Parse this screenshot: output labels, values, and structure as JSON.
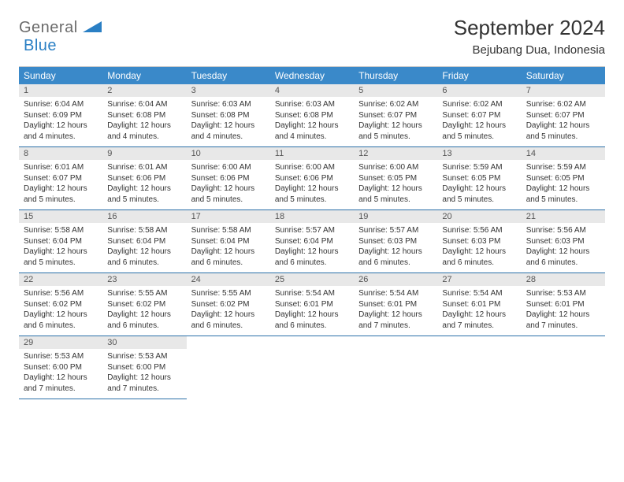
{
  "logo": {
    "part1": "General",
    "part2": "Blue"
  },
  "title": "September 2024",
  "location": "Bejubang Dua, Indonesia",
  "colors": {
    "header_bg": "#3a89c9",
    "header_text": "#ffffff",
    "daynum_bg": "#e8e8e8",
    "border": "#2a6fa8",
    "logo_gray": "#6b6b6b",
    "logo_blue": "#2a7fc4"
  },
  "dayNames": [
    "Sunday",
    "Monday",
    "Tuesday",
    "Wednesday",
    "Thursday",
    "Friday",
    "Saturday"
  ],
  "weeks": [
    [
      {
        "n": "1",
        "sr": "6:04 AM",
        "ss": "6:09 PM",
        "dl": "12 hours and 4 minutes."
      },
      {
        "n": "2",
        "sr": "6:04 AM",
        "ss": "6:08 PM",
        "dl": "12 hours and 4 minutes."
      },
      {
        "n": "3",
        "sr": "6:03 AM",
        "ss": "6:08 PM",
        "dl": "12 hours and 4 minutes."
      },
      {
        "n": "4",
        "sr": "6:03 AM",
        "ss": "6:08 PM",
        "dl": "12 hours and 4 minutes."
      },
      {
        "n": "5",
        "sr": "6:02 AM",
        "ss": "6:07 PM",
        "dl": "12 hours and 5 minutes."
      },
      {
        "n": "6",
        "sr": "6:02 AM",
        "ss": "6:07 PM",
        "dl": "12 hours and 5 minutes."
      },
      {
        "n": "7",
        "sr": "6:02 AM",
        "ss": "6:07 PM",
        "dl": "12 hours and 5 minutes."
      }
    ],
    [
      {
        "n": "8",
        "sr": "6:01 AM",
        "ss": "6:07 PM",
        "dl": "12 hours and 5 minutes."
      },
      {
        "n": "9",
        "sr": "6:01 AM",
        "ss": "6:06 PM",
        "dl": "12 hours and 5 minutes."
      },
      {
        "n": "10",
        "sr": "6:00 AM",
        "ss": "6:06 PM",
        "dl": "12 hours and 5 minutes."
      },
      {
        "n": "11",
        "sr": "6:00 AM",
        "ss": "6:06 PM",
        "dl": "12 hours and 5 minutes."
      },
      {
        "n": "12",
        "sr": "6:00 AM",
        "ss": "6:05 PM",
        "dl": "12 hours and 5 minutes."
      },
      {
        "n": "13",
        "sr": "5:59 AM",
        "ss": "6:05 PM",
        "dl": "12 hours and 5 minutes."
      },
      {
        "n": "14",
        "sr": "5:59 AM",
        "ss": "6:05 PM",
        "dl": "12 hours and 5 minutes."
      }
    ],
    [
      {
        "n": "15",
        "sr": "5:58 AM",
        "ss": "6:04 PM",
        "dl": "12 hours and 5 minutes."
      },
      {
        "n": "16",
        "sr": "5:58 AM",
        "ss": "6:04 PM",
        "dl": "12 hours and 6 minutes."
      },
      {
        "n": "17",
        "sr": "5:58 AM",
        "ss": "6:04 PM",
        "dl": "12 hours and 6 minutes."
      },
      {
        "n": "18",
        "sr": "5:57 AM",
        "ss": "6:04 PM",
        "dl": "12 hours and 6 minutes."
      },
      {
        "n": "19",
        "sr": "5:57 AM",
        "ss": "6:03 PM",
        "dl": "12 hours and 6 minutes."
      },
      {
        "n": "20",
        "sr": "5:56 AM",
        "ss": "6:03 PM",
        "dl": "12 hours and 6 minutes."
      },
      {
        "n": "21",
        "sr": "5:56 AM",
        "ss": "6:03 PM",
        "dl": "12 hours and 6 minutes."
      }
    ],
    [
      {
        "n": "22",
        "sr": "5:56 AM",
        "ss": "6:02 PM",
        "dl": "12 hours and 6 minutes."
      },
      {
        "n": "23",
        "sr": "5:55 AM",
        "ss": "6:02 PM",
        "dl": "12 hours and 6 minutes."
      },
      {
        "n": "24",
        "sr": "5:55 AM",
        "ss": "6:02 PM",
        "dl": "12 hours and 6 minutes."
      },
      {
        "n": "25",
        "sr": "5:54 AM",
        "ss": "6:01 PM",
        "dl": "12 hours and 6 minutes."
      },
      {
        "n": "26",
        "sr": "5:54 AM",
        "ss": "6:01 PM",
        "dl": "12 hours and 7 minutes."
      },
      {
        "n": "27",
        "sr": "5:54 AM",
        "ss": "6:01 PM",
        "dl": "12 hours and 7 minutes."
      },
      {
        "n": "28",
        "sr": "5:53 AM",
        "ss": "6:01 PM",
        "dl": "12 hours and 7 minutes."
      }
    ],
    [
      {
        "n": "29",
        "sr": "5:53 AM",
        "ss": "6:00 PM",
        "dl": "12 hours and 7 minutes."
      },
      {
        "n": "30",
        "sr": "5:53 AM",
        "ss": "6:00 PM",
        "dl": "12 hours and 7 minutes."
      },
      null,
      null,
      null,
      null,
      null
    ]
  ],
  "labels": {
    "sunrise": "Sunrise: ",
    "sunset": "Sunset: ",
    "daylight": "Daylight: "
  }
}
